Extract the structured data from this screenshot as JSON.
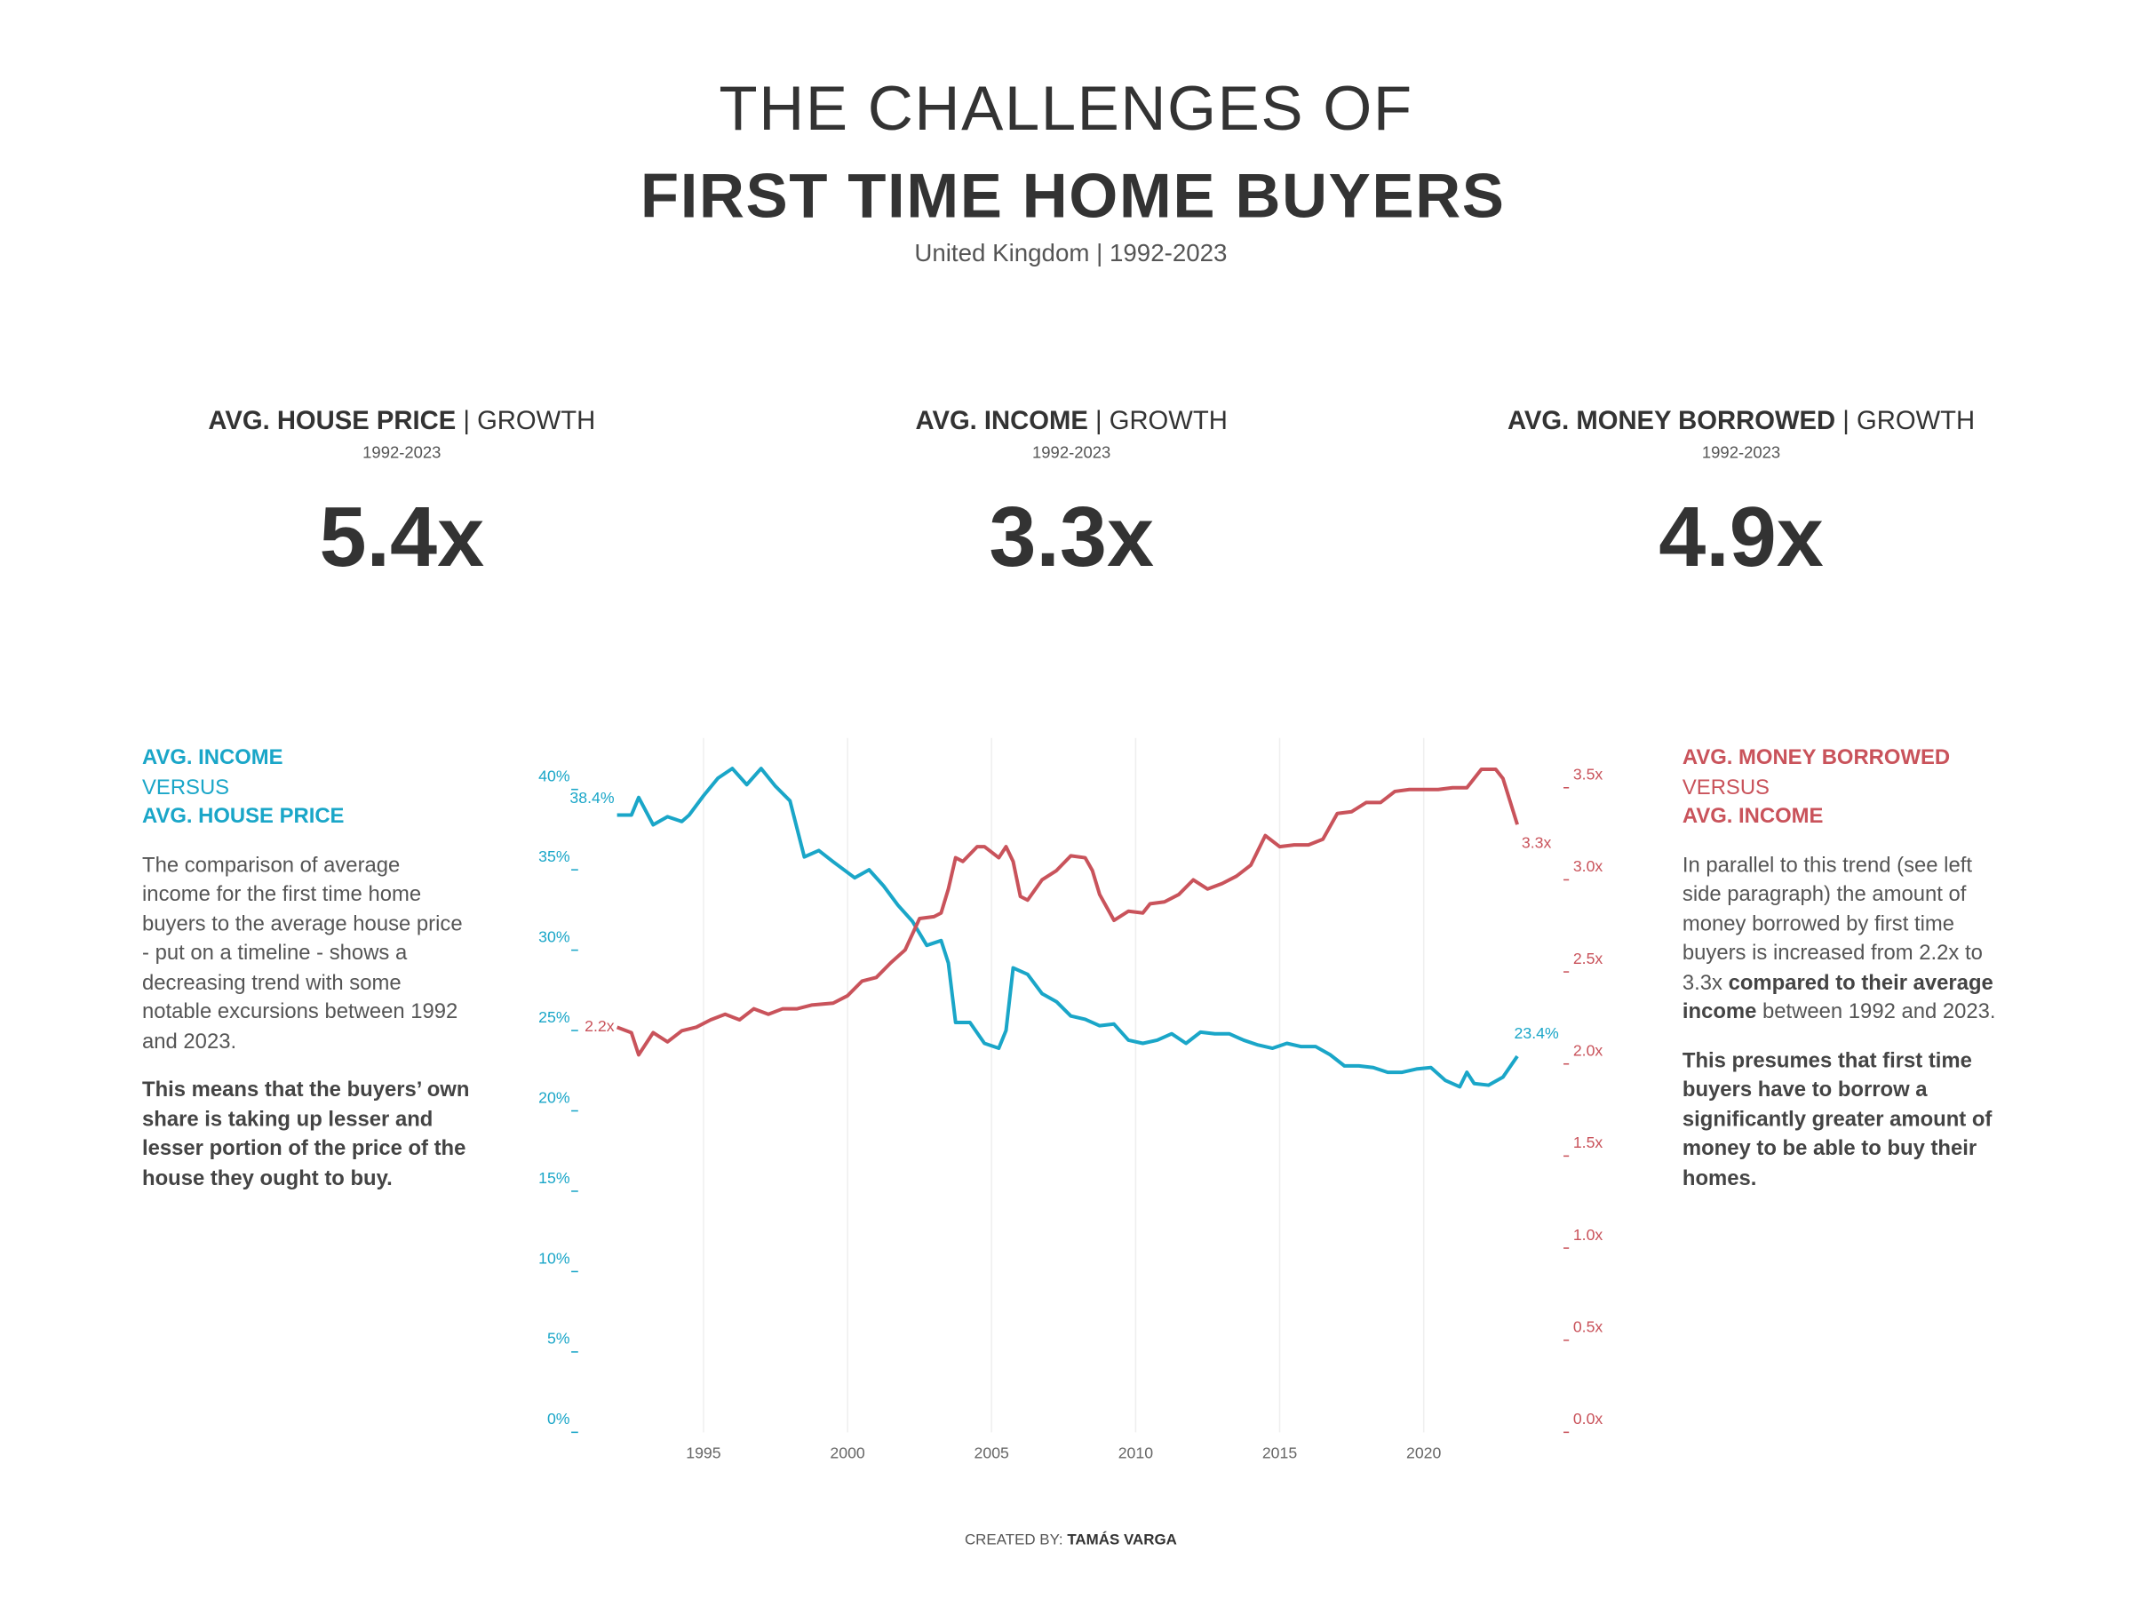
{
  "header": {
    "title_line_1": "THE CHALLENGES OF",
    "title_line_2": "FIRST TIME HOME BUYERS",
    "subtitle": "United Kingdom | 1992-2023"
  },
  "kpis": [
    {
      "label": "AVG. HOUSE PRICE",
      "suffix": "| GROWTH",
      "period": "1992-2023",
      "value": "5.4x"
    },
    {
      "label": "AVG. INCOME",
      "suffix": "| GROWTH",
      "period": "1992-2023",
      "value": "3.3x"
    },
    {
      "label": "AVG. MONEY BORROWED",
      "suffix": "| GROWTH",
      "period": "1992-2023",
      "value": "4.9x"
    }
  ],
  "left_panel": {
    "heading_1": "AVG. INCOME",
    "heading_2": "VERSUS",
    "heading_3": "AVG. HOUSE PRICE",
    "paragraph_1": "The comparison of average income for the first time home buyers to the average house price - put on a timeline - shows a decreasing trend with some notable excursions between 1992 and 2023.",
    "paragraph_2": "This means that the buyers’ own share is taking up lesser and lesser portion of the price of the house they ought to buy."
  },
  "right_panel": {
    "heading_1": "AVG. MONEY BORROWED",
    "heading_2": "VERSUS",
    "heading_3": "AVG. INCOME",
    "paragraph_1": [
      "In parallel to this trend (see left side paragraph) the amount of money borrowed by first time buyers is increased from 2.2x to 3.3x ",
      "compared to their average income",
      " between 1992 and 2023."
    ],
    "paragraph_2": "This presumes that first time buyers have to borrow a significantly greater amount of money to be able to buy their homes."
  },
  "footer": {
    "prefix": "CREATED BY:",
    "author": "TAMÁS VARGA"
  },
  "chart_data": {
    "type": "line",
    "xlim": [
      1990.6,
      2024.9
    ],
    "xticks": [
      1995,
      2000,
      2005,
      2010,
      2015,
      2020
    ],
    "ylim": [
      0,
      43.2
    ],
    "yticks": [
      {
        "value": 0,
        "label": "0%"
      },
      {
        "value": 5,
        "label": "5%"
      },
      {
        "value": 10,
        "label": "10%"
      },
      {
        "value": 15,
        "label": "15%"
      },
      {
        "value": 20,
        "label": "20%"
      },
      {
        "value": 25,
        "label": "25%"
      },
      {
        "value": 30,
        "label": "30%"
      },
      {
        "value": 35,
        "label": "35%"
      },
      {
        "value": 40,
        "label": "40%"
      }
    ],
    "y2lim": [
      0,
      3.77
    ],
    "y2ticks": [
      {
        "value": 0,
        "label": "0.0x"
      },
      {
        "value": 0.5,
        "label": "0.5x"
      },
      {
        "value": 1,
        "label": "1.0x"
      },
      {
        "value": 1.5,
        "label": "1.5x"
      },
      {
        "value": 2,
        "label": "2.0x"
      },
      {
        "value": 2.5,
        "label": "2.5x"
      },
      {
        "value": 3,
        "label": "3.0x"
      },
      {
        "value": 3.5,
        "label": "3.5x"
      }
    ],
    "grid": true,
    "series": [
      {
        "color": "#1aa6c8",
        "axis": "y",
        "x": [
          1992,
          1992.5,
          1992.75,
          1993.25,
          1993.75,
          1994.25,
          1994.5,
          1995,
          1995.5,
          1996,
          1996.5,
          1997,
          1997.5,
          1998,
          1998.5,
          1999,
          1999.5,
          2000.25,
          2000.75,
          2001.25,
          2001.75,
          2002.25,
          2002.75,
          2003.25,
          2003.5,
          2003.75,
          2004.25,
          2004.75,
          2005.25,
          2005.5,
          2005.75,
          2006.25,
          2006.75,
          2007.25,
          2007.75,
          2008.25,
          2008.75,
          2009.25,
          2009.75,
          2010.25,
          2010.75,
          2011.25,
          2011.75,
          2012.25,
          2012.75,
          2013.25,
          2013.75,
          2014.25,
          2014.75,
          2015.25,
          2015.75,
          2016.25,
          2016.75,
          2017.25,
          2017.75,
          2018.25,
          2018.75,
          2019.25,
          2019.75,
          2020.25,
          2020.75,
          2021.25,
          2021.5,
          2021.75,
          2022.25,
          2022.75,
          2023.25
        ],
        "values": [
          38.4,
          38.4,
          39.5,
          37.8,
          38.3,
          38.0,
          38.4,
          39.6,
          40.7,
          41.3,
          40.3,
          41.3,
          40.2,
          39.3,
          35.8,
          36.2,
          35.5,
          34.5,
          35.0,
          34.0,
          32.8,
          31.8,
          30.3,
          30.6,
          29.2,
          25.5,
          25.5,
          24.2,
          23.9,
          25.0,
          28.9,
          28.5,
          27.3,
          26.8,
          25.9,
          25.7,
          25.3,
          25.4,
          24.4,
          24.2,
          24.4,
          24.8,
          24.2,
          24.9,
          24.8,
          24.8,
          24.4,
          24.1,
          23.9,
          24.2,
          24.0,
          24.0,
          23.5,
          22.8,
          22.8,
          22.7,
          22.4,
          22.4,
          22.6,
          22.7,
          21.9,
          21.5,
          22.4,
          21.7,
          21.6,
          22.1,
          23.4
        ],
        "value_labels": [
          "38.4%",
          null,
          null,
          null,
          null,
          null,
          null,
          null,
          null,
          null,
          null,
          null,
          null,
          null,
          null,
          null,
          null,
          null,
          null,
          null,
          null,
          null,
          null,
          null,
          null,
          null,
          null,
          null,
          null,
          null,
          null,
          null,
          null,
          null,
          null,
          null,
          null,
          null,
          null,
          null,
          null,
          null,
          null,
          null,
          null,
          null,
          null,
          null,
          null,
          null,
          null,
          null,
          null,
          null,
          null,
          null,
          null,
          null,
          null,
          null,
          null,
          null,
          null,
          null,
          null,
          null,
          "23.4%"
        ]
      },
      {
        "color": "#c9535b",
        "axis": "y2",
        "x": [
          1992,
          1992.5,
          1992.75,
          1993.25,
          1993.75,
          1994.25,
          1994.75,
          1995.25,
          1995.75,
          1996.25,
          1996.75,
          1997.25,
          1997.75,
          1998.25,
          1998.75,
          1999.5,
          2000,
          2000.5,
          2001,
          2001.5,
          2002,
          2002.5,
          2003,
          2003.25,
          2003.5,
          2003.75,
          2004,
          2004.5,
          2004.75,
          2005.25,
          2005.5,
          2005.75,
          2006,
          2006.25,
          2006.75,
          2007.25,
          2007.75,
          2008.25,
          2008.5,
          2008.75,
          2009.25,
          2009.75,
          2010.25,
          2010.5,
          2011,
          2011.5,
          2012,
          2012.5,
          2013,
          2013.5,
          2014,
          2014.5,
          2015,
          2015.5,
          2016,
          2016.5,
          2017,
          2017.5,
          2018,
          2018.5,
          2019,
          2019.5,
          2020,
          2020.5,
          2021,
          2021.5,
          2022,
          2022.5,
          2022.75,
          2023.25
        ],
        "values": [
          2.2,
          2.17,
          2.05,
          2.17,
          2.12,
          2.18,
          2.2,
          2.24,
          2.27,
          2.24,
          2.3,
          2.27,
          2.3,
          2.3,
          2.32,
          2.33,
          2.37,
          2.45,
          2.47,
          2.55,
          2.62,
          2.79,
          2.8,
          2.82,
          2.95,
          3.12,
          3.1,
          3.18,
          3.18,
          3.12,
          3.18,
          3.1,
          2.91,
          2.89,
          3.0,
          3.05,
          3.13,
          3.12,
          3.05,
          2.92,
          2.78,
          2.83,
          2.82,
          2.87,
          2.88,
          2.92,
          3.0,
          2.95,
          2.98,
          3.02,
          3.08,
          3.24,
          3.18,
          3.19,
          3.19,
          3.22,
          3.36,
          3.37,
          3.42,
          3.42,
          3.48,
          3.49,
          3.49,
          3.49,
          3.5,
          3.5,
          3.6,
          3.6,
          3.55,
          3.3
        ],
        "value_labels": [
          "2.2x",
          null,
          null,
          null,
          null,
          null,
          null,
          null,
          null,
          null,
          null,
          null,
          null,
          null,
          null,
          null,
          null,
          null,
          null,
          null,
          null,
          null,
          null,
          null,
          null,
          null,
          null,
          null,
          null,
          null,
          null,
          null,
          null,
          null,
          null,
          null,
          null,
          null,
          null,
          null,
          null,
          null,
          null,
          null,
          null,
          null,
          null,
          null,
          null,
          null,
          null,
          null,
          null,
          null,
          null,
          null,
          null,
          null,
          null,
          null,
          null,
          null,
          null,
          null,
          null,
          null,
          null,
          null,
          null,
          "3.3x"
        ]
      }
    ]
  }
}
